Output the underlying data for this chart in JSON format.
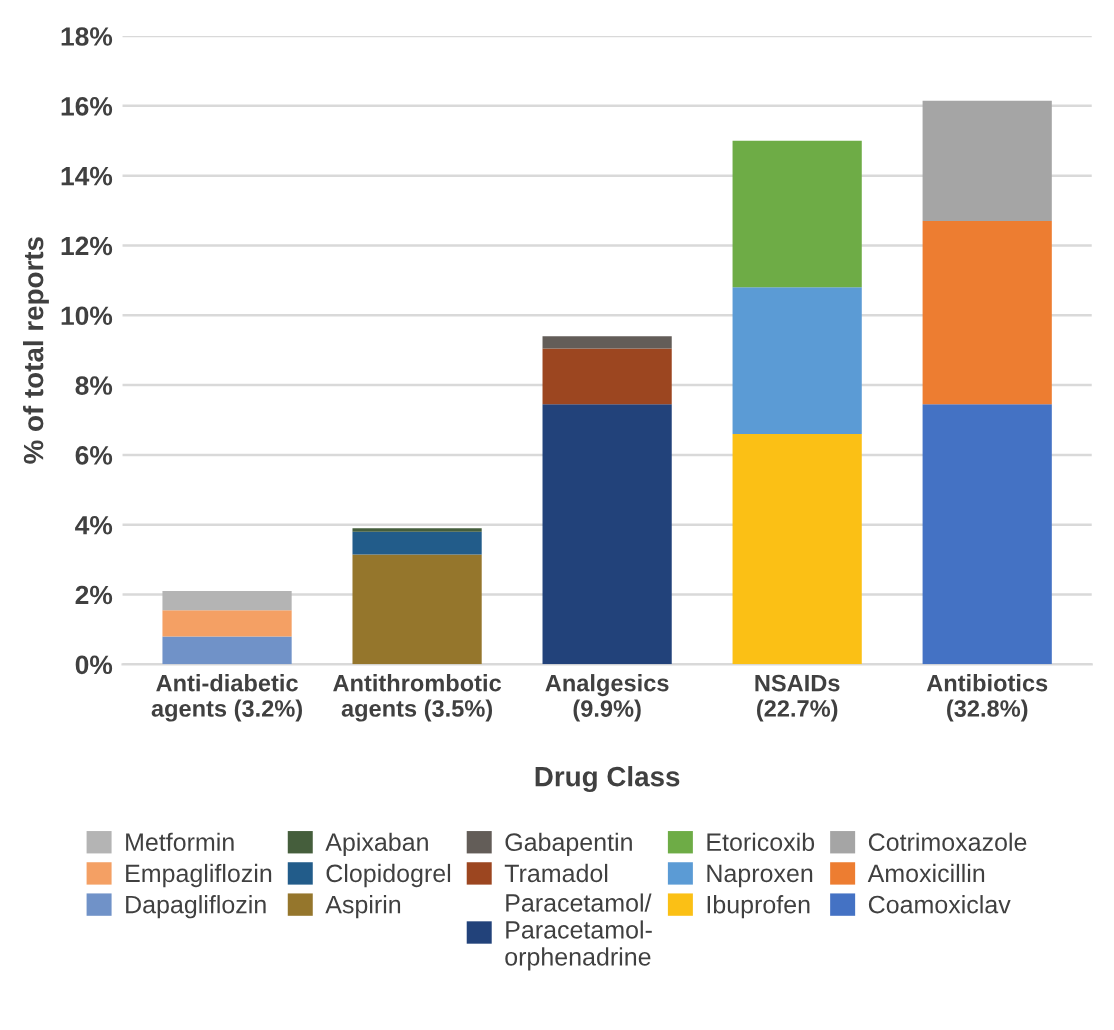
{
  "chart_data": {
    "type": "bar",
    "stacked": true,
    "xlabel": "Drug Class",
    "ylabel": "% of total reports",
    "categories": [
      "Anti-diabetic\nagents (3.2%)",
      "Antithrombotic\nagents (3.5%)",
      "Analgesics\n(9.9%)",
      "NSAIDs\n(22.7%)",
      "Antibiotics\n(32.8%)"
    ],
    "series": [
      {
        "name": "Dapagliflozin",
        "color": "#7092c8",
        "values": [
          0.8,
          null,
          null,
          null,
          null
        ]
      },
      {
        "name": "Empagliflozin",
        "color": "#f4a064",
        "values": [
          0.75,
          null,
          null,
          null,
          null
        ]
      },
      {
        "name": "Metformin",
        "color": "#b4b4b4",
        "values": [
          0.55,
          null,
          null,
          null,
          null
        ]
      },
      {
        "name": "Aspirin",
        "color": "#95762c",
        "values": [
          null,
          3.15,
          null,
          null,
          null
        ]
      },
      {
        "name": "Clopidogrel",
        "color": "#225c8a",
        "values": [
          null,
          0.65,
          null,
          null,
          null
        ]
      },
      {
        "name": "Apixaban",
        "color": "#455e3c",
        "values": [
          null,
          0.1,
          null,
          null,
          null
        ]
      },
      {
        "name": "Paracetamol/\nParacetamol-\norphenadrine",
        "color": "#22427a",
        "values": [
          null,
          null,
          7.45,
          null,
          null
        ]
      },
      {
        "name": "Tramadol",
        "color": "#9c4620",
        "values": [
          null,
          null,
          1.6,
          null,
          null
        ]
      },
      {
        "name": "Gabapentin",
        "color": "#635d58",
        "values": [
          null,
          null,
          0.35,
          null,
          null
        ]
      },
      {
        "name": "Ibuprofen",
        "color": "#fbc015",
        "values": [
          null,
          null,
          null,
          6.6,
          null
        ]
      },
      {
        "name": "Naproxen",
        "color": "#5b9bd5",
        "values": [
          null,
          null,
          null,
          4.2,
          null
        ]
      },
      {
        "name": "Etoricoxib",
        "color": "#6eac46",
        "values": [
          null,
          null,
          null,
          4.2,
          null
        ]
      },
      {
        "name": "Coamoxiclav",
        "color": "#4472c4",
        "values": [
          null,
          null,
          null,
          null,
          7.45
        ]
      },
      {
        "name": "Amoxicillin",
        "color": "#ed7d31",
        "values": [
          null,
          null,
          null,
          null,
          5.25
        ]
      },
      {
        "name": "Cotrimoxazole",
        "color": "#a5a5a5",
        "values": [
          null,
          null,
          null,
          null,
          3.45
        ]
      }
    ],
    "ylim": [
      0,
      18
    ],
    "yticks": [
      {
        "value": 0,
        "label": "0%"
      },
      {
        "value": 2,
        "label": "2%"
      },
      {
        "value": 4,
        "label": "4%"
      },
      {
        "value": 6,
        "label": "6%"
      },
      {
        "value": 8,
        "label": "8%"
      },
      {
        "value": 10,
        "label": "10%"
      },
      {
        "value": 12,
        "label": "12%"
      },
      {
        "value": 14,
        "label": "14%"
      },
      {
        "value": 16,
        "label": "16%"
      },
      {
        "value": 18,
        "label": "18%"
      }
    ],
    "grid": "y",
    "legend": "bottom"
  }
}
